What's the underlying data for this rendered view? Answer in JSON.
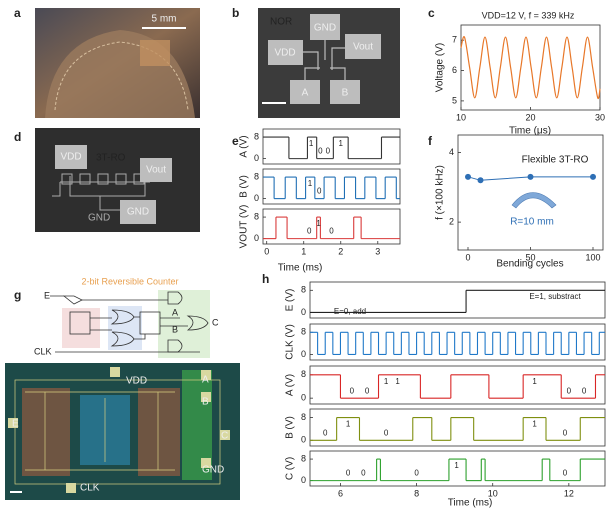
{
  "figure": {
    "panel_labels": [
      "a",
      "b",
      "c",
      "d",
      "e",
      "f",
      "g",
      "h"
    ],
    "a": {
      "scale_bar": "5 mm"
    },
    "b": {
      "title": "NOR",
      "pads": [
        "GND",
        "VDD",
        "Vout",
        "A",
        "B"
      ]
    },
    "d": {
      "title": "3T-RO",
      "pads": [
        "VDD",
        "Vout",
        "GND"
      ],
      "net_label": "GND"
    },
    "g": {
      "title": "2-bit Reversible Counter",
      "schematic": [
        "E",
        "CLK",
        "A",
        "B",
        "C"
      ],
      "photo": [
        "VDD",
        "A",
        "B",
        "E",
        "C",
        "CLK",
        "GND"
      ]
    }
  },
  "chart_data": [
    {
      "type": "line",
      "title": "VDD=12 V, f = 339 kHz",
      "x_label": "Time (μs)",
      "y_label": "Voltage (V)",
      "color": "#e8782a",
      "x": [
        10.0,
        10.5,
        11.24,
        11.98,
        12.71,
        13.45,
        14.19,
        14.93,
        15.66,
        16.4,
        17.14,
        17.88,
        18.61,
        19.35,
        20.09,
        20.83,
        21.56,
        22.3,
        23.04,
        23.78,
        24.51,
        25.25,
        25.99,
        26.73,
        27.46,
        28.2,
        28.94,
        29.67,
        30.0
      ],
      "values": [
        6.75,
        7.1,
        6.1,
        5.1,
        6.1,
        7.1,
        6.1,
        5.1,
        6.1,
        7.1,
        6.1,
        5.1,
        6.1,
        7.1,
        6.1,
        5.1,
        6.1,
        7.1,
        6.1,
        5.1,
        6.1,
        7.1,
        6.1,
        5.1,
        6.1,
        7.1,
        6.1,
        5.1,
        5.4
      ],
      "xlim": [
        10,
        30
      ],
      "ylim": [
        4.7,
        7.5
      ],
      "xticks": [
        10,
        20,
        30
      ],
      "yticks": [
        5,
        6,
        7
      ]
    },
    {
      "type": "step",
      "x_label": "Time (ms)",
      "xlim": [
        -0.1,
        3.6
      ],
      "ylim": [
        -2,
        11
      ],
      "xticks": [
        0,
        1,
        2,
        3
      ],
      "yticks": [
        0,
        8
      ],
      "series": [
        {
          "name": "A (V)",
          "color": "#333333",
          "x": [
            -0.1,
            0.6,
            1.1,
            1.35,
            1.8,
            2.2,
            3.1,
            3.6
          ],
          "values": [
            8,
            0,
            8,
            0,
            8,
            0,
            8,
            8
          ],
          "labels": [
            "1",
            "0",
            "0",
            "1"
          ]
        },
        {
          "name": "B (V)",
          "color": "#1f6fb5",
          "x": [
            -0.1,
            0.2,
            0.5,
            0.8,
            1.05,
            1.3,
            1.55,
            1.85,
            2.1,
            2.4,
            2.65,
            2.95,
            3.2,
            3.5,
            3.6
          ],
          "values": [
            8,
            0,
            8,
            0,
            8,
            0,
            8,
            0,
            8,
            0,
            8,
            0,
            8,
            0,
            0
          ],
          "labels": [
            "1",
            "0"
          ]
        },
        {
          "name": "VOUT (V)",
          "color": "#d93a3a",
          "x": [
            -0.1,
            0.25,
            0.55,
            1.35,
            1.45,
            2.35,
            2.55,
            3.6
          ],
          "values": [
            0,
            8,
            0,
            8,
            0,
            8,
            0,
            0
          ],
          "labels": [
            "0",
            "1",
            "0"
          ]
        }
      ]
    },
    {
      "type": "scatter",
      "x_label": "Bending cycles",
      "y_label": "f (×100 kHz)",
      "color": "#2e6fb5",
      "x": [
        0,
        10,
        50,
        100
      ],
      "values": [
        3.3,
        3.2,
        3.3,
        3.3
      ],
      "xlim": [
        -8,
        108
      ],
      "ylim": [
        1.2,
        4.5
      ],
      "xticks": [
        0,
        50,
        100
      ],
      "yticks": [
        2,
        4
      ],
      "annotations": [
        "Flexible 3T-RO",
        "R=10 mm"
      ]
    },
    {
      "type": "step",
      "x_label": "Time (ms)",
      "xlim": [
        5.2,
        12.95
      ],
      "ylim": [
        -2,
        11
      ],
      "xticks": [
        6,
        8,
        10,
        12
      ],
      "yticks": [
        0,
        8
      ],
      "annotations": [
        "E=0, add",
        "E=1, substract"
      ],
      "series": [
        {
          "name": "E (V)",
          "color": "#222222",
          "x": [
            5.2,
            9.3,
            12.95
          ],
          "values": [
            0,
            8,
            8
          ],
          "labels": []
        },
        {
          "name": "CLK (V)",
          "color": "#1f78c8",
          "x": [
            5.2,
            5.4,
            5.6,
            5.8,
            6.0,
            6.2,
            6.4,
            6.6,
            6.8,
            7.0,
            7.2,
            7.4,
            7.6,
            7.8,
            8.0,
            8.2,
            8.4,
            8.6,
            8.8,
            9.0,
            9.2,
            9.4,
            9.6,
            9.8,
            10.0,
            10.2,
            10.4,
            10.6,
            10.8,
            11.0,
            11.2,
            11.4,
            11.6,
            11.8,
            12.0,
            12.2,
            12.4,
            12.6,
            12.8,
            12.95
          ],
          "values": [
            8,
            0,
            8,
            0,
            8,
            0,
            8,
            0,
            8,
            0,
            8,
            0,
            8,
            0,
            8,
            0,
            8,
            0,
            8,
            0,
            8,
            0,
            8,
            0,
            8,
            0,
            8,
            0,
            8,
            0,
            8,
            0,
            8,
            0,
            8,
            0,
            8,
            0,
            8,
            8
          ],
          "labels": []
        },
        {
          "name": "A (V)",
          "color": "#d92626",
          "x": [
            5.2,
            6.0,
            7.0,
            8.1,
            8.9,
            9.9,
            10.8,
            11.8,
            12.7,
            12.95
          ],
          "values": [
            8,
            0,
            8,
            0,
            8,
            0,
            8,
            0,
            8,
            8
          ],
          "labels": [
            "0",
            "0",
            "1",
            "1",
            "1",
            "0",
            "0"
          ]
        },
        {
          "name": "B (V)",
          "color": "#7f8f10",
          "x": [
            5.2,
            5.9,
            6.5,
            7.9,
            8.4,
            8.9,
            9.5,
            10.8,
            11.4,
            12.3,
            12.95
          ],
          "values": [
            0,
            8,
            0,
            8,
            0,
            8,
            0,
            8,
            0,
            8,
            8
          ],
          "labels": [
            "0",
            "1",
            "0",
            "1",
            "0"
          ]
        },
        {
          "name": "C (V)",
          "color": "#2ca02c",
          "x": [
            5.2,
            6.95,
            7.05,
            8.85,
            9.3,
            9.7,
            9.8,
            11.3,
            11.5,
            12.3,
            12.95
          ],
          "values": [
            0,
            8,
            0,
            8,
            0,
            8,
            0,
            8,
            0,
            8,
            8
          ],
          "labels": [
            "0",
            "0",
            "0",
            "1",
            "0"
          ]
        }
      ]
    }
  ]
}
